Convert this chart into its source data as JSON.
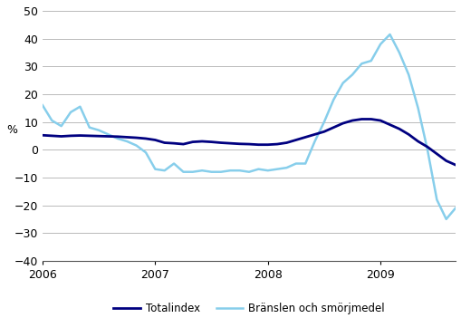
{
  "totalindex": [
    5.2,
    5.0,
    4.8,
    5.0,
    5.1,
    5.0,
    4.9,
    4.8,
    4.7,
    4.5,
    4.3,
    4.0,
    3.5,
    2.5,
    2.3,
    2.0,
    2.8,
    3.0,
    2.8,
    2.5,
    2.3,
    2.1,
    2.0,
    1.8,
    1.8,
    2.0,
    2.5,
    3.5,
    4.5,
    5.5,
    6.5,
    8.0,
    9.5,
    10.5,
    11.0,
    11.0,
    10.5,
    9.0,
    7.5,
    5.5,
    3.0,
    1.0,
    -1.5,
    -4.0,
    -5.5
  ],
  "branslen": [
    16.0,
    10.5,
    8.5,
    13.5,
    15.5,
    8.0,
    7.0,
    5.5,
    4.0,
    3.0,
    1.5,
    -1.0,
    -7.0,
    -7.5,
    -5.0,
    -8.0,
    -8.0,
    -7.5,
    -8.0,
    -8.0,
    -7.5,
    -7.5,
    -8.0,
    -7.0,
    -7.5,
    -7.0,
    -6.5,
    -5.0,
    -5.0,
    3.0,
    10.0,
    18.0,
    24.0,
    27.0,
    31.0,
    32.0,
    38.0,
    41.5,
    35.0,
    27.0,
    15.0,
    0.0,
    -18.0,
    -25.0,
    -21.0
  ],
  "n_months": 45,
  "ylim": [
    -40,
    50
  ],
  "yticks": [
    -40,
    -30,
    -20,
    -10,
    0,
    10,
    20,
    30,
    40,
    50
  ],
  "ylabel": "%",
  "xtick_years": [
    2006,
    2007,
    2008,
    2009
  ],
  "totalindex_color": "#000080",
  "branslen_color": "#87CEEB",
  "totalindex_label": "Totalindex",
  "branslen_label": "Bränslen och smörjmedel",
  "linewidth_total": 2.0,
  "linewidth_branslen": 1.8,
  "background_color": "#ffffff",
  "grid_color": "#b0b0b0"
}
